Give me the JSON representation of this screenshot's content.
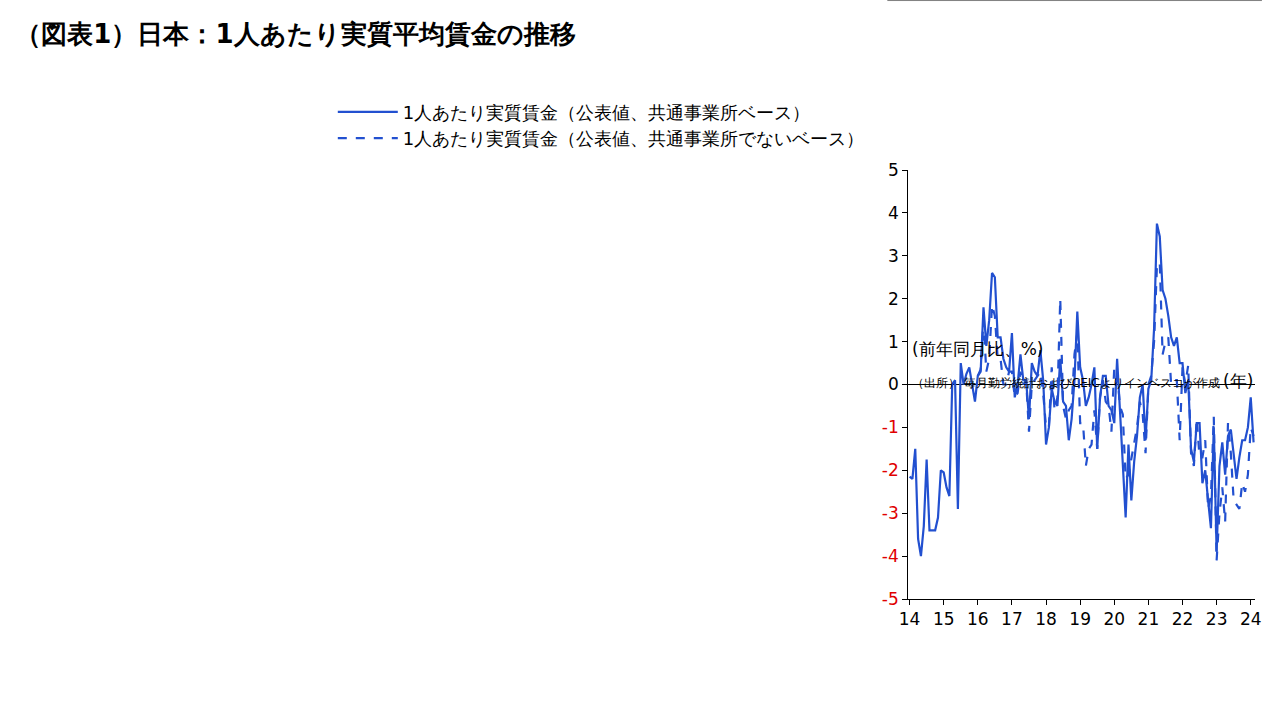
{
  "chart_data": {
    "type": "line",
    "title": "（図表1）日本：1人あたり実質平均賃金の推移",
    "y_label": "(前年同月比、%)",
    "x_label": "(年)",
    "source": "（出所） 毎月勤労統計およびCEICよりインベスコが作成",
    "categories": [
      "14",
      null,
      null,
      null,
      null,
      null,
      null,
      null,
      null,
      null,
      null,
      null,
      "15",
      null,
      null,
      null,
      null,
      null,
      null,
      null,
      null,
      null,
      null,
      null,
      "16",
      null,
      null,
      null,
      null,
      null,
      null,
      null,
      null,
      null,
      null,
      null,
      "17",
      null,
      null,
      null,
      null,
      null,
      null,
      null,
      null,
      null,
      null,
      null,
      "18",
      null,
      null,
      null,
      null,
      null,
      null,
      null,
      null,
      null,
      null,
      null,
      "19",
      null,
      null,
      null,
      null,
      null,
      null,
      null,
      null,
      null,
      null,
      null,
      "20",
      null,
      null,
      null,
      null,
      null,
      null,
      null,
      null,
      null,
      null,
      null,
      "21",
      null,
      null,
      null,
      null,
      null,
      null,
      null,
      null,
      null,
      null,
      null,
      "22",
      null,
      null,
      null,
      null,
      null,
      null,
      null,
      null,
      null,
      null,
      null,
      "23",
      null,
      null,
      null,
      null,
      null,
      null,
      null,
      null,
      null,
      null,
      null,
      "24",
      null
    ],
    "series": [
      {
        "name": "1人あたり実質賃金（公表値、共通事業所ベース）",
        "color": "#2250d0",
        "line_style": "solid",
        "values": [
          -2.15,
          -2.2,
          -1.5,
          -3.6,
          -4.0,
          -3.3,
          -1.75,
          -3.4,
          -3.4,
          -3.4,
          -3.1,
          -2.0,
          -2.05,
          -2.4,
          -2.6,
          0.0,
          0.1,
          -2.9,
          0.5,
          0.0,
          0.25,
          0.4,
          0.0,
          -0.4,
          0.2,
          0.3,
          1.8,
          0.9,
          1.5,
          2.6,
          2.5,
          1.1,
          1.1,
          0.6,
          0.4,
          0.3,
          1.2,
          -0.3,
          0.0,
          0.7,
          0.1,
          0.1,
          -0.8,
          0.5,
          0.3,
          0.2,
          0.8,
          0.1,
          -1.4,
          -1.0,
          -0.1,
          -0.4,
          -0.5,
          0.6,
          -0.4,
          -0.5,
          -1.3,
          -0.8,
          0.1,
          1.7,
          0.4,
          0.1,
          -0.5,
          -0.3,
          0.0,
          0.4,
          -1.5,
          -0.3,
          0.2,
          0.2,
          -0.5,
          -0.6,
          -0.9,
          0.6,
          -0.6,
          -1.9,
          -3.1,
          -1.4,
          -2.7,
          -1.8,
          -1.2,
          -0.3,
          0.0,
          -1.3,
          -0.1,
          0.1,
          1.3,
          3.75,
          3.45,
          2.2,
          2.0,
          1.6,
          1.1,
          0.9,
          1.1,
          0.5,
          0.5,
          -0.2,
          0.1,
          -1.5,
          -1.8,
          -0.9,
          -0.9,
          -2.3,
          -2.0,
          -2.7,
          -3.35,
          -1.0,
          -3.9,
          -1.9,
          -1.35,
          -2.1,
          -1.2,
          -1.05,
          -1.6,
          -2.2,
          -1.7,
          -1.3,
          -1.3,
          -1.0,
          -0.3,
          -1.35
        ]
      },
      {
        "name": "1人あたり実質賃金（公表値、共通事業所でないベース）",
        "color": "#2250d0",
        "line_style": "dash",
        "values": [
          null,
          null,
          null,
          null,
          null,
          null,
          null,
          null,
          null,
          null,
          null,
          null,
          null,
          null,
          null,
          null,
          null,
          null,
          null,
          null,
          null,
          null,
          null,
          null,
          0.2,
          0.35,
          1.5,
          0.3,
          0.6,
          1.85,
          1.6,
          0.6,
          0.6,
          0.0,
          0.0,
          0.3,
          0.3,
          -0.3,
          -0.2,
          0.3,
          0.0,
          0.1,
          -1.1,
          0.0,
          0.1,
          0.2,
          0.3,
          -0.2,
          -1.0,
          -1.0,
          0.4,
          -0.6,
          -0.3,
          2.0,
          -0.5,
          -0.8,
          -0.6,
          -0.5,
          0.7,
          1.2,
          -0.9,
          -0.9,
          -1.9,
          -1.5,
          -1.4,
          -0.6,
          -1.5,
          -0.3,
          0.1,
          -0.4,
          -0.5,
          -1.1,
          0.4,
          0.3,
          -0.5,
          -0.7,
          -2.2,
          -2.1,
          -1.7,
          -1.4,
          -1.0,
          -0.4,
          -0.7,
          -1.6,
          0.0,
          0.2,
          1.0,
          2.75,
          2.85,
          0.7,
          1.0,
          1.1,
          0.0,
          0.1,
          0.1,
          -1.3,
          0.4,
          0.0,
          0.45,
          -1.6,
          -1.9,
          -0.8,
          -1.7,
          -1.7,
          -1.3,
          -2.9,
          -2.6,
          -0.75,
          -4.1,
          -3.0,
          -2.4,
          -3.2,
          -0.9,
          -1.6,
          -2.7,
          -2.8,
          -2.9,
          -2.3,
          -2.5,
          -2.1,
          -1.0,
          -1.2
        ]
      }
    ],
    "ylim": [
      -5,
      5
    ],
    "yticks": [
      -5,
      -4,
      -3,
      -2,
      -1,
      0,
      1,
      2,
      3,
      4,
      5
    ],
    "grid": false,
    "legend": "top"
  }
}
